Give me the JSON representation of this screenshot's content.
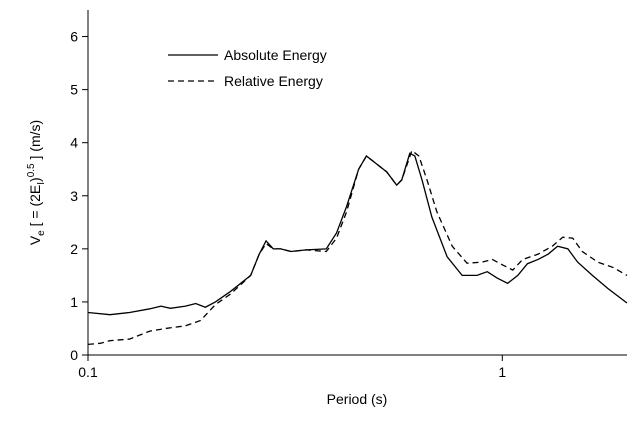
{
  "chart_data": {
    "type": "line",
    "x_label": "Period (s)",
    "y_label": [
      {
        "text": "V"
      },
      {
        "text": "e",
        "position": "sub"
      },
      {
        "text": " [ = (2E"
      },
      {
        "text": "I",
        "position": "sub"
      },
      {
        "text": ")"
      },
      {
        "text": "0.5",
        "position": "super"
      },
      {
        "text": " ]  (m/s)"
      }
    ],
    "xscale": "log",
    "xlim": [
      0.1,
      2.0
    ],
    "xticks": [
      0.1,
      1
    ],
    "ylim": [
      0,
      6.5
    ],
    "yticks": [
      0,
      1,
      2,
      3,
      4,
      5,
      6
    ],
    "legend": "upper left",
    "series": [
      {
        "name": "Absolute Energy",
        "color": "#000000",
        "dash": "solid",
        "x": [
          0.1,
          0.113,
          0.126,
          0.141,
          0.15,
          0.158,
          0.172,
          0.182,
          0.192,
          0.203,
          0.221,
          0.247,
          0.259,
          0.269,
          0.28,
          0.292,
          0.309,
          0.336,
          0.376,
          0.398,
          0.421,
          0.45,
          0.47,
          0.497,
          0.526,
          0.556,
          0.572,
          0.598,
          0.615,
          0.64,
          0.676,
          0.736,
          0.8,
          0.869,
          0.92,
          0.972,
          1.03,
          1.09,
          1.15,
          1.22,
          1.29,
          1.36,
          1.44,
          1.52,
          1.65,
          1.8,
          2.0
        ],
        "values": [
          0.8,
          0.76,
          0.8,
          0.87,
          0.92,
          0.88,
          0.92,
          0.97,
          0.9,
          1.0,
          1.2,
          1.5,
          1.9,
          2.15,
          2.0,
          2.0,
          1.95,
          1.98,
          2.0,
          2.3,
          2.8,
          3.5,
          3.75,
          3.6,
          3.45,
          3.2,
          3.3,
          3.8,
          3.75,
          3.3,
          2.6,
          1.85,
          1.5,
          1.5,
          1.57,
          1.45,
          1.35,
          1.5,
          1.72,
          1.8,
          1.9,
          2.05,
          2.0,
          1.75,
          1.5,
          1.25,
          0.98
        ]
      },
      {
        "name": "Relative Energy",
        "color": "#000000",
        "dash": "dashed",
        "x": [
          0.1,
          0.107,
          0.113,
          0.126,
          0.141,
          0.154,
          0.172,
          0.187,
          0.203,
          0.221,
          0.247,
          0.259,
          0.269,
          0.28,
          0.292,
          0.309,
          0.336,
          0.376,
          0.398,
          0.421,
          0.45,
          0.47,
          0.497,
          0.526,
          0.556,
          0.572,
          0.605,
          0.629,
          0.658,
          0.695,
          0.757,
          0.822,
          0.894,
          0.946,
          1.0,
          1.06,
          1.12,
          1.22,
          1.32,
          1.4,
          1.48,
          1.56,
          1.7,
          1.85,
          2.0
        ],
        "values": [
          0.2,
          0.22,
          0.27,
          0.3,
          0.45,
          0.5,
          0.55,
          0.65,
          0.95,
          1.15,
          1.5,
          1.9,
          2.1,
          2.0,
          2.0,
          1.95,
          1.98,
          1.95,
          2.2,
          2.7,
          3.5,
          3.75,
          3.6,
          3.45,
          3.2,
          3.3,
          3.85,
          3.75,
          3.3,
          2.7,
          2.05,
          1.73,
          1.75,
          1.8,
          1.7,
          1.6,
          1.8,
          1.9,
          2.05,
          2.22,
          2.2,
          1.95,
          1.75,
          1.65,
          1.5
        ]
      }
    ]
  }
}
